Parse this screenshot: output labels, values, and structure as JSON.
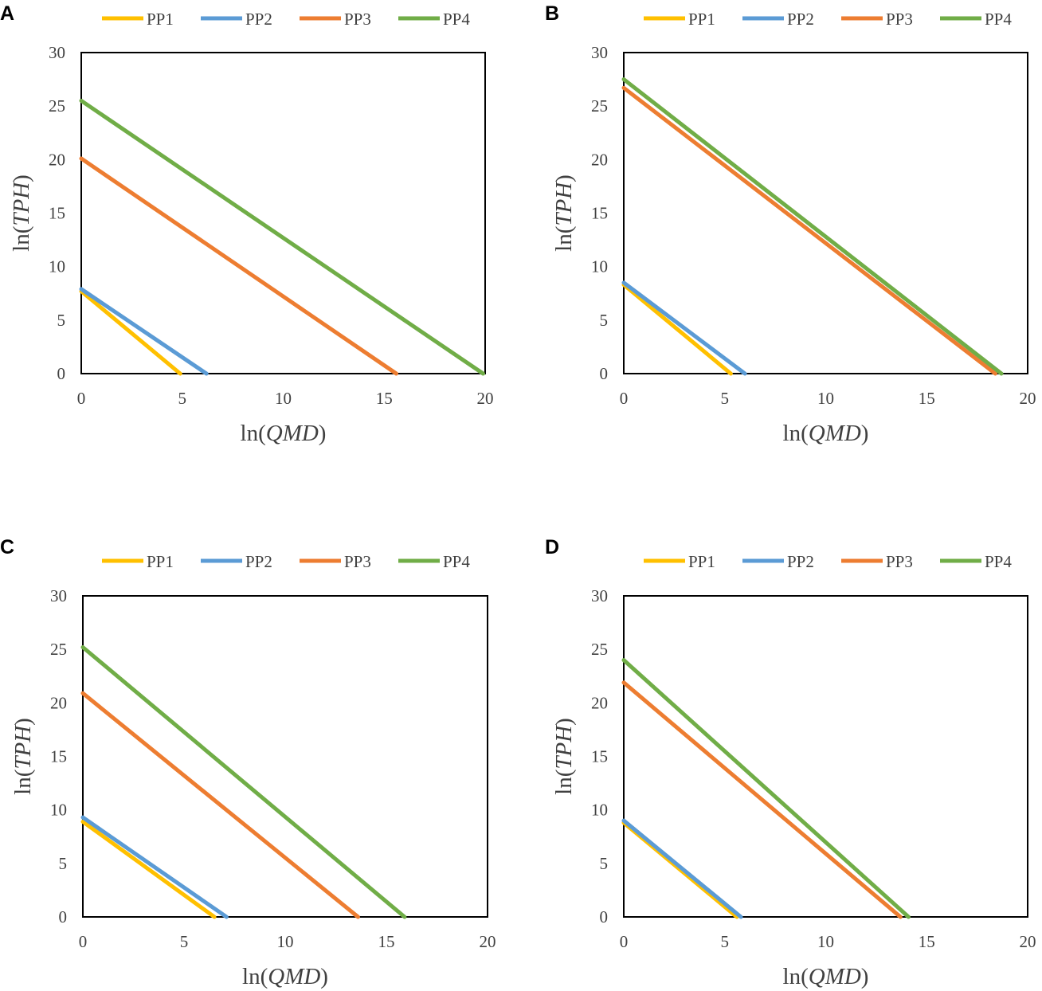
{
  "chart_data": [
    {
      "panel": "A",
      "type": "line",
      "xlabel_prefix": "ln(",
      "xlabel_var": "QMD",
      "xlabel_suffix": ")",
      "ylabel_prefix": "ln(",
      "ylabel_var": "TPH",
      "ylabel_suffix": ")",
      "xlim": [
        0,
        20
      ],
      "ylim": [
        0,
        30
      ],
      "xticks": [
        0,
        5,
        10,
        15,
        20
      ],
      "yticks": [
        0,
        5,
        10,
        15,
        20,
        25,
        30
      ],
      "legend_position": "top",
      "series": [
        {
          "name": "PP1",
          "color": "#FFC000",
          "x": [
            0,
            4.9
          ],
          "y": [
            7.7,
            0
          ]
        },
        {
          "name": "PP2",
          "color": "#5B9BD5",
          "x": [
            0,
            6.2
          ],
          "y": [
            7.9,
            0
          ]
        },
        {
          "name": "PP3",
          "color": "#ED7D31",
          "x": [
            0,
            15.6
          ],
          "y": [
            20.1,
            0
          ]
        },
        {
          "name": "PP4",
          "color": "#70AD47",
          "x": [
            0,
            19.9
          ],
          "y": [
            25.5,
            0
          ]
        }
      ]
    },
    {
      "panel": "B",
      "type": "line",
      "xlabel_prefix": "ln(",
      "xlabel_var": "QMD",
      "xlabel_suffix": ")",
      "ylabel_prefix": "ln(",
      "ylabel_var": "TPH",
      "ylabel_suffix": ")",
      "xlim": [
        0,
        20
      ],
      "ylim": [
        0,
        30
      ],
      "xticks": [
        0,
        5,
        10,
        15,
        20
      ],
      "yticks": [
        0,
        5,
        10,
        15,
        20,
        25,
        30
      ],
      "legend_position": "top",
      "series": [
        {
          "name": "PP1",
          "color": "#FFC000",
          "x": [
            0,
            5.3
          ],
          "y": [
            8.3,
            0
          ]
        },
        {
          "name": "PP2",
          "color": "#5B9BD5",
          "x": [
            0,
            6.0
          ],
          "y": [
            8.5,
            0
          ]
        },
        {
          "name": "PP3",
          "color": "#ED7D31",
          "x": [
            0,
            18.4
          ],
          "y": [
            26.7,
            0
          ]
        },
        {
          "name": "PP4",
          "color": "#70AD47",
          "x": [
            0,
            18.7
          ],
          "y": [
            27.5,
            0
          ]
        }
      ]
    },
    {
      "panel": "C",
      "type": "line",
      "xlabel_prefix": "ln(",
      "xlabel_var": "QMD",
      "xlabel_suffix": ")",
      "ylabel_prefix": "ln(",
      "ylabel_var": "TPH",
      "ylabel_suffix": ")",
      "xlim": [
        0,
        20
      ],
      "ylim": [
        0,
        30
      ],
      "xticks": [
        0,
        5,
        10,
        15,
        20
      ],
      "yticks": [
        0,
        5,
        10,
        15,
        20,
        25,
        30
      ],
      "legend_position": "top",
      "series": [
        {
          "name": "PP1",
          "color": "#FFC000",
          "x": [
            0,
            6.5
          ],
          "y": [
            8.9,
            0
          ]
        },
        {
          "name": "PP2",
          "color": "#5B9BD5",
          "x": [
            0,
            7.1
          ],
          "y": [
            9.3,
            0
          ]
        },
        {
          "name": "PP3",
          "color": "#ED7D31",
          "x": [
            0,
            13.6
          ],
          "y": [
            20.9,
            0
          ]
        },
        {
          "name": "PP4",
          "color": "#70AD47",
          "x": [
            0,
            15.9
          ],
          "y": [
            25.2,
            0
          ]
        }
      ]
    },
    {
      "panel": "D",
      "type": "line",
      "xlabel_prefix": "ln(",
      "xlabel_var": "QMD",
      "xlabel_suffix": ")",
      "ylabel_prefix": "ln(",
      "ylabel_var": "TPH",
      "ylabel_suffix": ")",
      "xlim": [
        0,
        20
      ],
      "ylim": [
        0,
        30
      ],
      "xticks": [
        0,
        5,
        10,
        15,
        20
      ],
      "yticks": [
        0,
        5,
        10,
        15,
        20,
        25,
        30
      ],
      "legend_position": "top",
      "series": [
        {
          "name": "PP1",
          "color": "#FFC000",
          "x": [
            0,
            5.6
          ],
          "y": [
            8.8,
            0
          ]
        },
        {
          "name": "PP2",
          "color": "#5B9BD5",
          "x": [
            0,
            5.8
          ],
          "y": [
            9.0,
            0
          ]
        },
        {
          "name": "PP3",
          "color": "#ED7D31",
          "x": [
            0,
            13.7
          ],
          "y": [
            21.9,
            0
          ]
        },
        {
          "name": "PP4",
          "color": "#70AD47",
          "x": [
            0,
            14.1
          ],
          "y": [
            24.0,
            0
          ]
        }
      ]
    }
  ]
}
